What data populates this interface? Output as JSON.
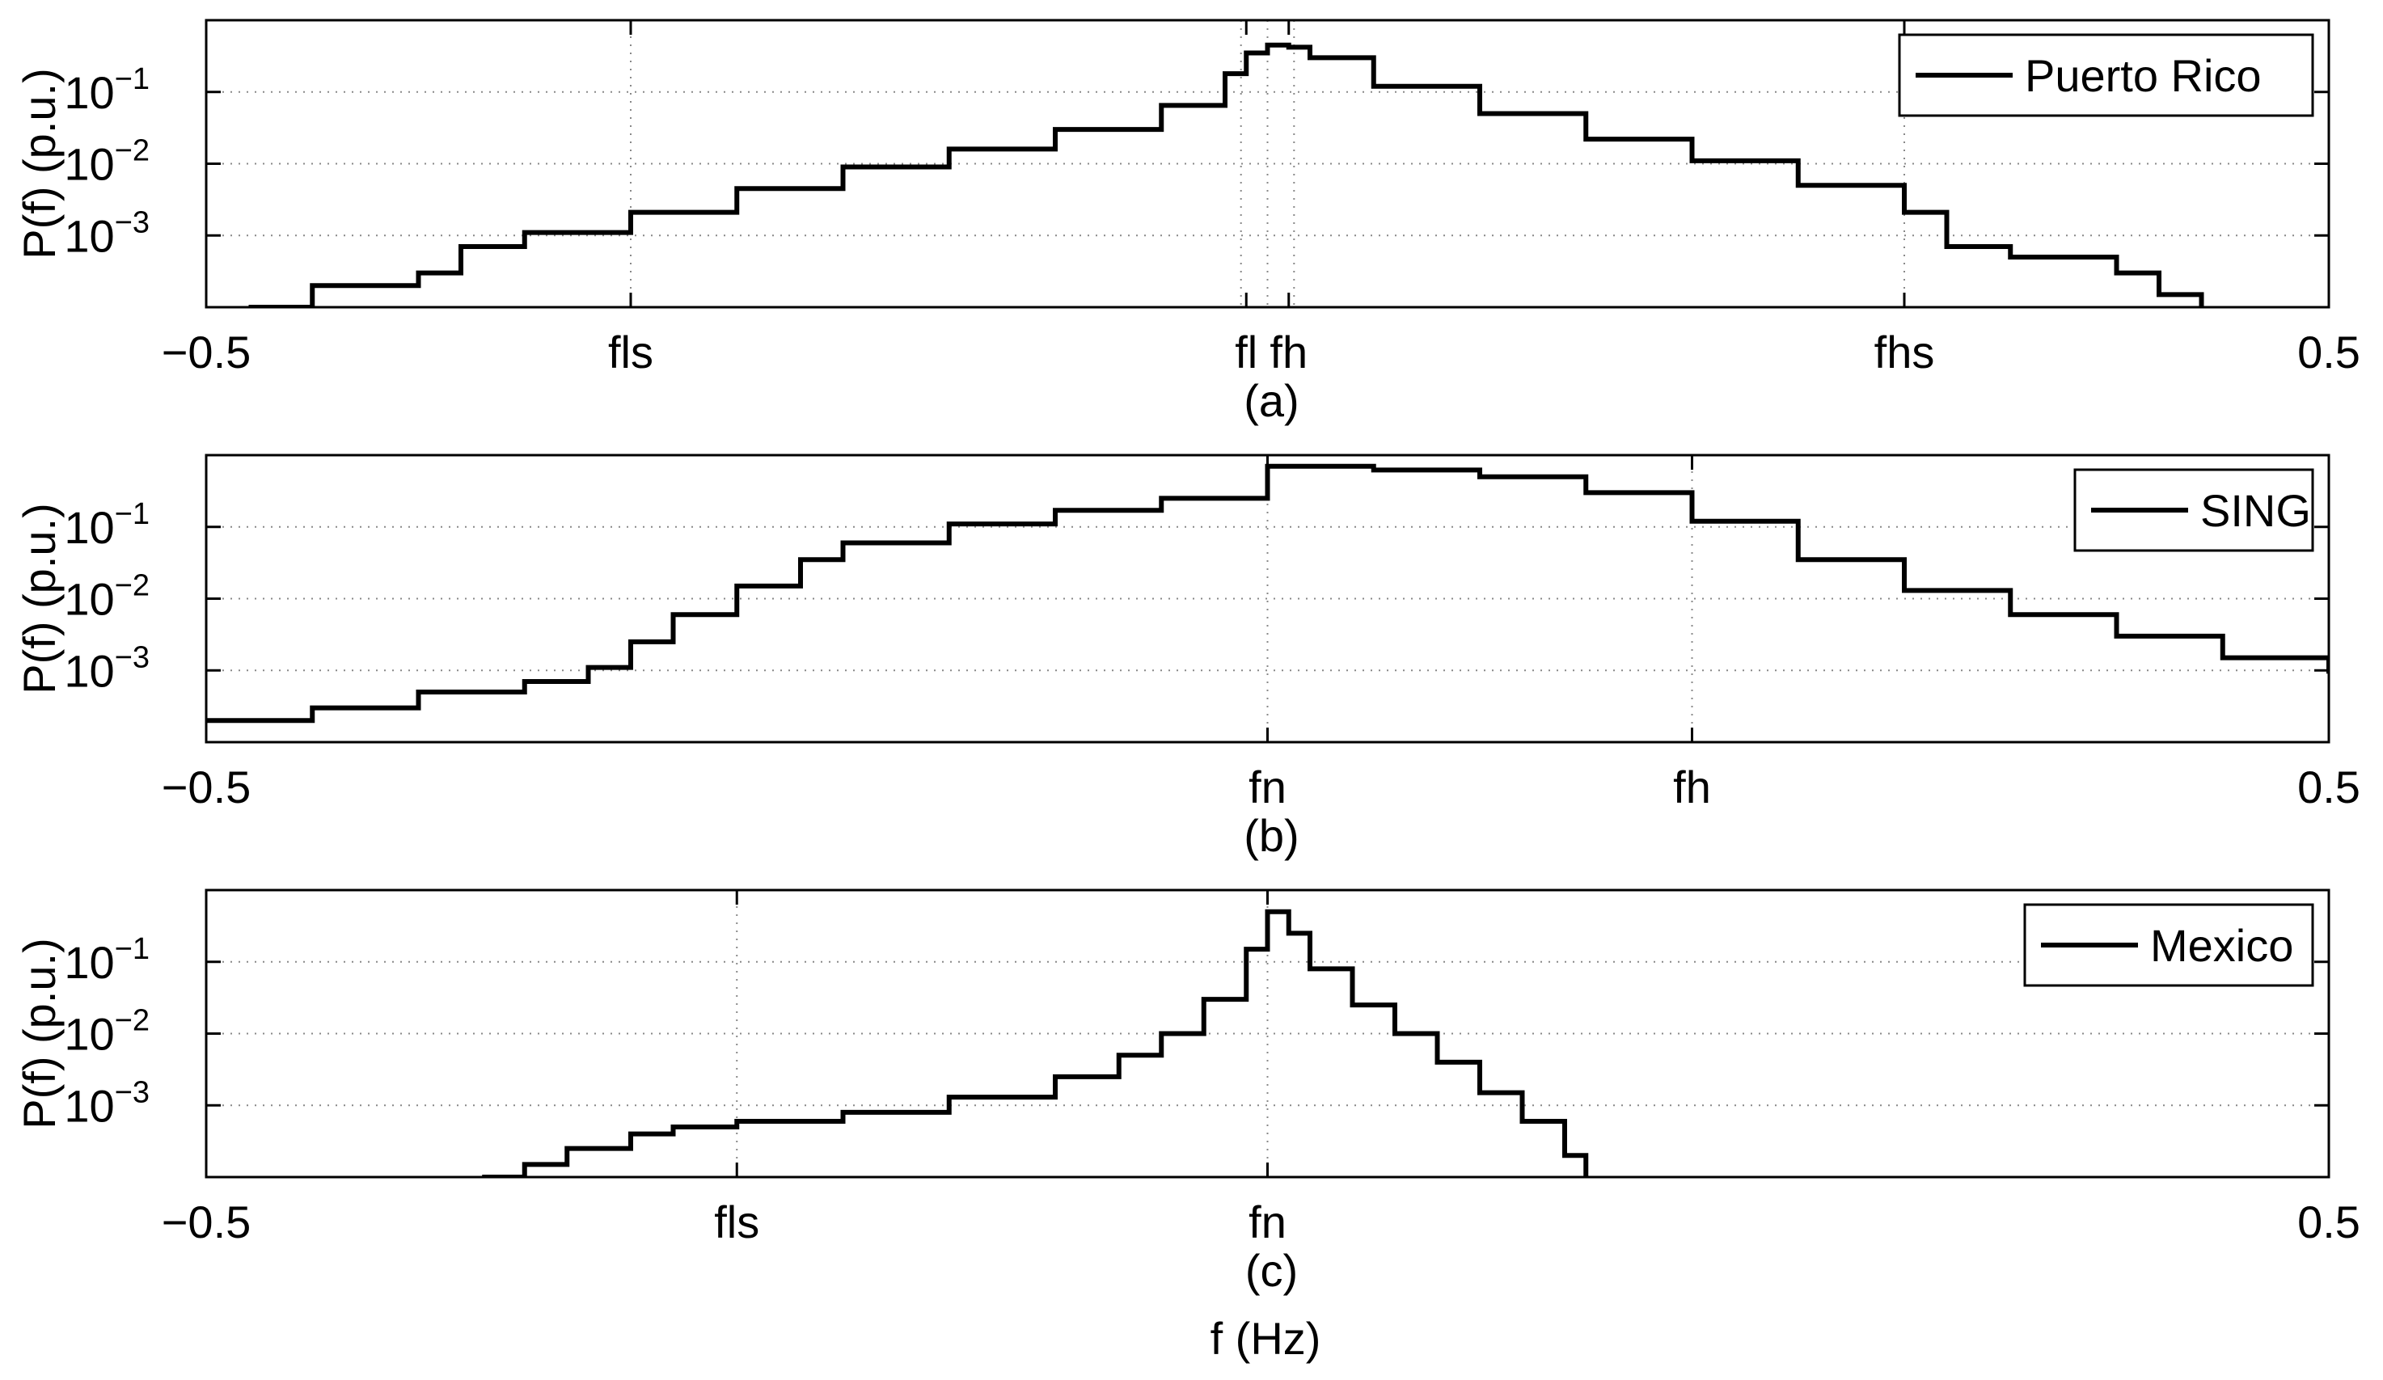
{
  "figure": {
    "xlabel": "f (Hz)",
    "x_range": [
      -0.5,
      0.5
    ]
  },
  "chart_data": [
    {
      "type": "line",
      "subtitle": "(a)",
      "ylabel": "P(f) (p.u.)",
      "yscale": "log",
      "ylim": [
        0.0001,
        1
      ],
      "ytick_labels": [
        {
          "v": 0.1,
          "b": "10",
          "e": "−1"
        },
        {
          "v": 0.01,
          "b": "10",
          "e": "−2"
        },
        {
          "v": 0.001,
          "b": "10",
          "e": "−3"
        }
      ],
      "xlim": [
        -0.5,
        0.5
      ],
      "xticks": [
        {
          "v": -0.5,
          "label": "−0.5"
        },
        {
          "v": -0.3,
          "label": "fls"
        },
        {
          "v": -0.01,
          "label": "fl"
        },
        {
          "v": 0.01,
          "label": "fh"
        },
        {
          "v": 0.3,
          "label": "fhs"
        },
        {
          "v": 0.5,
          "label": "0.5"
        }
      ],
      "grid_x": [
        -0.3,
        -0.0125,
        0,
        0.0125,
        0.3
      ],
      "grid_y": [
        0.1,
        0.01,
        0.001
      ],
      "grid": true,
      "legend": {
        "label": "Puerto Rico",
        "placement": "top-right"
      },
      "series": [
        {
          "name": "Puerto Rico",
          "x": [
            -0.48,
            -0.45,
            -0.4,
            -0.38,
            -0.35,
            -0.3,
            -0.25,
            -0.2,
            -0.15,
            -0.1,
            -0.05,
            -0.02,
            -0.01,
            0.0,
            0.01,
            0.02,
            0.05,
            0.1,
            0.15,
            0.2,
            0.25,
            0.3,
            0.32,
            0.35,
            0.4,
            0.42,
            0.44
          ],
          "y": [
            0.0001,
            0.0002,
            0.0003,
            0.0007,
            0.0011,
            0.0021,
            0.0045,
            0.009,
            0.016,
            0.03,
            0.065,
            0.18,
            0.35,
            0.45,
            0.42,
            0.3,
            0.12,
            0.05,
            0.022,
            0.011,
            0.005,
            0.0021,
            0.0007,
            0.0005,
            0.0003,
            0.00015,
            0.0001
          ]
        }
      ]
    },
    {
      "type": "line",
      "subtitle": "(b)",
      "ylabel": "P(f) (p.u.)",
      "yscale": "log",
      "ylim": [
        0.0001,
        1
      ],
      "ytick_labels": [
        {
          "v": 0.1,
          "b": "10",
          "e": "−1"
        },
        {
          "v": 0.01,
          "b": "10",
          "e": "−2"
        },
        {
          "v": 0.001,
          "b": "10",
          "e": "−3"
        }
      ],
      "xlim": [
        -0.5,
        0.5
      ],
      "xticks": [
        {
          "v": -0.5,
          "label": "−0.5"
        },
        {
          "v": 0.0,
          "label": "fn"
        },
        {
          "v": 0.2,
          "label": "fh"
        },
        {
          "v": 0.5,
          "label": "0.5"
        }
      ],
      "grid_x": [
        0,
        0.2
      ],
      "grid_y": [
        0.1,
        0.01,
        0.001
      ],
      "grid": true,
      "legend": {
        "label": "SING",
        "placement": "top-right"
      },
      "series": [
        {
          "name": "SING",
          "x": [
            -0.5,
            -0.45,
            -0.4,
            -0.35,
            -0.32,
            -0.3,
            -0.28,
            -0.25,
            -0.22,
            -0.2,
            -0.15,
            -0.1,
            -0.05,
            0.0,
            0.0,
            0.05,
            0.1,
            0.15,
            0.2,
            0.25,
            0.3,
            0.35,
            0.4,
            0.45,
            0.5
          ],
          "y": [
            0.0002,
            0.0003,
            0.0005,
            0.0007,
            0.0011,
            0.0025,
            0.006,
            0.015,
            0.035,
            0.06,
            0.11,
            0.17,
            0.25,
            0.33,
            0.7,
            0.62,
            0.5,
            0.3,
            0.12,
            0.035,
            0.013,
            0.006,
            0.003,
            0.0015,
            0.0009
          ]
        }
      ]
    },
    {
      "type": "line",
      "subtitle": "(c)",
      "ylabel": "P(f) (p.u.)",
      "yscale": "log",
      "ylim": [
        0.0001,
        1
      ],
      "ytick_labels": [
        {
          "v": 0.1,
          "b": "10",
          "e": "−1"
        },
        {
          "v": 0.01,
          "b": "10",
          "e": "−2"
        },
        {
          "v": 0.001,
          "b": "10",
          "e": "−3"
        }
      ],
      "xlim": [
        -0.5,
        0.5
      ],
      "xticks": [
        {
          "v": -0.5,
          "label": "−0.5"
        },
        {
          "v": -0.25,
          "label": "fls"
        },
        {
          "v": 0.0,
          "label": "fn"
        },
        {
          "v": 0.5,
          "label": "0.5"
        }
      ],
      "grid_x": [
        -0.25,
        0
      ],
      "grid_y": [
        0.1,
        0.01,
        0.001
      ],
      "grid": true,
      "legend": {
        "label": "Mexico",
        "placement": "top-right"
      },
      "series": [
        {
          "name": "Mexico",
          "x": [
            -0.37,
            -0.35,
            -0.33,
            -0.3,
            -0.28,
            -0.25,
            -0.2,
            -0.15,
            -0.1,
            -0.07,
            -0.05,
            -0.03,
            -0.01,
            0.0,
            0.01,
            0.02,
            0.04,
            0.06,
            0.08,
            0.1,
            0.12,
            0.14,
            0.15
          ],
          "y": [
            0.0001,
            0.00015,
            0.00025,
            0.0004,
            0.0005,
            0.0006,
            0.0008,
            0.0013,
            0.0025,
            0.005,
            0.01,
            0.03,
            0.15,
            0.5,
            0.25,
            0.08,
            0.025,
            0.01,
            0.004,
            0.0015,
            0.0006,
            0.0002,
            0.0001
          ]
        }
      ]
    }
  ]
}
